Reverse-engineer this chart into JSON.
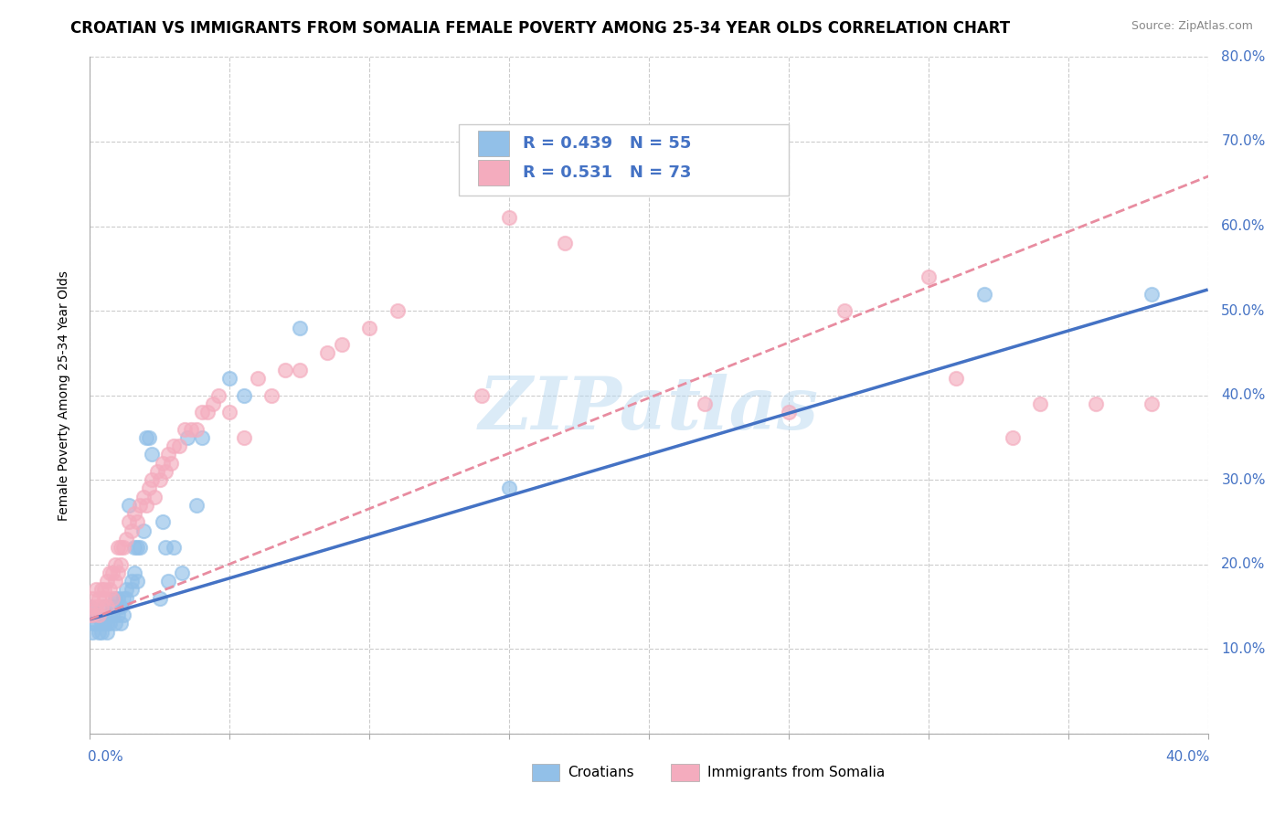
{
  "title": "CROATIAN VS IMMIGRANTS FROM SOMALIA FEMALE POVERTY AMONG 25-34 YEAR OLDS CORRELATION CHART",
  "source": "Source: ZipAtlas.com",
  "ylabel": "Female Poverty Among 25-34 Year Olds",
  "xlim": [
    0.0,
    0.4
  ],
  "ylim": [
    0.0,
    0.8
  ],
  "xticks": [
    0.0,
    0.05,
    0.1,
    0.15,
    0.2,
    0.25,
    0.3,
    0.35,
    0.4
  ],
  "yticks": [
    0.0,
    0.1,
    0.2,
    0.3,
    0.4,
    0.5,
    0.6,
    0.7,
    0.8
  ],
  "ytick_labels": [
    "",
    "10.0%",
    "20.0%",
    "30.0%",
    "40.0%",
    "50.0%",
    "60.0%",
    "70.0%",
    "80.0%"
  ],
  "croatian_color": "#92C0E8",
  "somalia_color": "#F4ACBE",
  "croatian_line_color": "#4472C4",
  "somalia_line_color": "#E88CA0",
  "R_croatian": 0.439,
  "N_croatian": 55,
  "R_somalia": 0.531,
  "N_somalia": 73,
  "watermark": "ZIPatlas",
  "background_color": "#FFFFFF",
  "grid_color": "#CCCCCC",
  "title_fontsize": 12,
  "axis_label_fontsize": 10,
  "tick_fontsize": 11,
  "croatian_scatter_x": [
    0.0,
    0.0,
    0.001,
    0.001,
    0.002,
    0.002,
    0.003,
    0.003,
    0.004,
    0.004,
    0.005,
    0.005,
    0.006,
    0.006,
    0.007,
    0.007,
    0.008,
    0.008,
    0.009,
    0.009,
    0.01,
    0.01,
    0.011,
    0.011,
    0.012,
    0.012,
    0.013,
    0.013,
    0.014,
    0.015,
    0.015,
    0.016,
    0.016,
    0.017,
    0.017,
    0.018,
    0.019,
    0.02,
    0.021,
    0.022,
    0.025,
    0.026,
    0.027,
    0.028,
    0.03,
    0.033,
    0.035,
    0.038,
    0.04,
    0.05,
    0.055,
    0.075,
    0.15,
    0.32,
    0.38
  ],
  "croatian_scatter_y": [
    0.15,
    0.14,
    0.13,
    0.12,
    0.14,
    0.13,
    0.12,
    0.14,
    0.12,
    0.13,
    0.15,
    0.13,
    0.12,
    0.13,
    0.14,
    0.13,
    0.15,
    0.14,
    0.16,
    0.13,
    0.14,
    0.16,
    0.13,
    0.15,
    0.14,
    0.16,
    0.16,
    0.17,
    0.27,
    0.17,
    0.18,
    0.19,
    0.22,
    0.18,
    0.22,
    0.22,
    0.24,
    0.35,
    0.35,
    0.33,
    0.16,
    0.25,
    0.22,
    0.18,
    0.22,
    0.19,
    0.35,
    0.27,
    0.35,
    0.42,
    0.4,
    0.48,
    0.29,
    0.52,
    0.52
  ],
  "somalia_scatter_x": [
    0.0,
    0.0,
    0.001,
    0.001,
    0.002,
    0.002,
    0.003,
    0.003,
    0.004,
    0.004,
    0.005,
    0.005,
    0.006,
    0.006,
    0.007,
    0.007,
    0.008,
    0.008,
    0.009,
    0.009,
    0.01,
    0.01,
    0.011,
    0.011,
    0.012,
    0.013,
    0.014,
    0.015,
    0.016,
    0.017,
    0.018,
    0.019,
    0.02,
    0.021,
    0.022,
    0.023,
    0.024,
    0.025,
    0.026,
    0.027,
    0.028,
    0.029,
    0.03,
    0.032,
    0.034,
    0.036,
    0.038,
    0.04,
    0.042,
    0.044,
    0.046,
    0.05,
    0.055,
    0.06,
    0.065,
    0.07,
    0.075,
    0.085,
    0.09,
    0.1,
    0.11,
    0.14,
    0.15,
    0.17,
    0.22,
    0.25,
    0.27,
    0.3,
    0.31,
    0.33,
    0.34,
    0.36,
    0.38
  ],
  "somalia_scatter_y": [
    0.15,
    0.14,
    0.14,
    0.16,
    0.15,
    0.17,
    0.14,
    0.16,
    0.15,
    0.17,
    0.16,
    0.17,
    0.15,
    0.18,
    0.17,
    0.19,
    0.16,
    0.19,
    0.18,
    0.2,
    0.19,
    0.22,
    0.2,
    0.22,
    0.22,
    0.23,
    0.25,
    0.24,
    0.26,
    0.25,
    0.27,
    0.28,
    0.27,
    0.29,
    0.3,
    0.28,
    0.31,
    0.3,
    0.32,
    0.31,
    0.33,
    0.32,
    0.34,
    0.34,
    0.36,
    0.36,
    0.36,
    0.38,
    0.38,
    0.39,
    0.4,
    0.38,
    0.35,
    0.42,
    0.4,
    0.43,
    0.43,
    0.45,
    0.46,
    0.48,
    0.5,
    0.4,
    0.61,
    0.58,
    0.39,
    0.38,
    0.5,
    0.54,
    0.42,
    0.35,
    0.39,
    0.39,
    0.39
  ],
  "cro_line_x0": 0.0,
  "cro_line_y0": 0.135,
  "cro_line_x1": 0.4,
  "cro_line_y1": 0.525,
  "som_line_x0": 0.0,
  "som_line_y0": 0.135,
  "som_line_x1": 0.4,
  "som_line_y1": 0.665
}
